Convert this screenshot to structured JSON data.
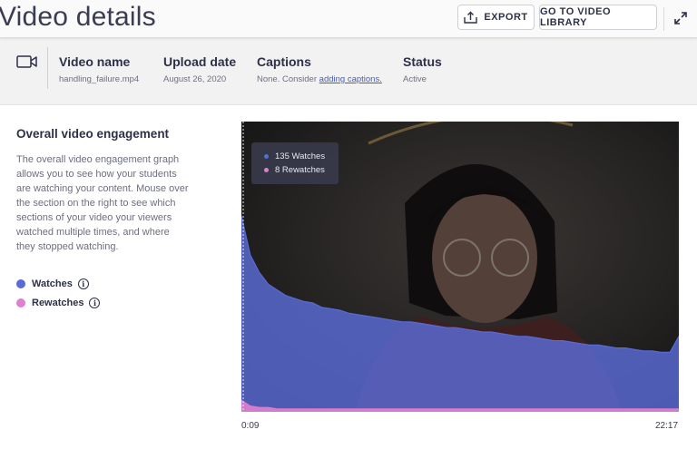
{
  "header": {
    "title": "Video details",
    "export_label": "EXPORT",
    "library_label": "GO TO VIDEO LIBRARY"
  },
  "info": {
    "video_name_label": "Video name",
    "video_name_value": "handling_failure.mp4",
    "upload_date_label": "Upload date",
    "upload_date_value": "August 26, 2020",
    "captions_label": "Captions",
    "captions_prefix": "None. Consider ",
    "captions_link": "adding captions.",
    "status_label": "Status",
    "status_value": "Active"
  },
  "engagement": {
    "title": "Overall video engagement",
    "description": "The overall video engagement graph allows you to see how your students are watching your content. Mouse over the section on the right to see which sections of your video your viewers watched multiple times, and where they stopped watching.",
    "legend": [
      {
        "label": "Watches",
        "color": "#5a6bd6"
      },
      {
        "label": "Rewatches",
        "color": "#e07fcf"
      }
    ],
    "tooltip": {
      "watches": "135 Watches",
      "rewatches": "8 Rewatches"
    },
    "time_start": "0:09",
    "time_end": "22:17"
  },
  "chart_data": {
    "type": "area",
    "series": [
      {
        "name": "Watches",
        "values": [
          135,
          108,
          96,
          88,
          84,
          80,
          78,
          76,
          75,
          72,
          71,
          70,
          68,
          67,
          66,
          65,
          64,
          63,
          62,
          62,
          61,
          60,
          59,
          58,
          58,
          57,
          56,
          55,
          55,
          54,
          53,
          52,
          52,
          51,
          50,
          49,
          49,
          48,
          47,
          46,
          46,
          45,
          44,
          44,
          43,
          42,
          42,
          41,
          41,
          52
        ]
      },
      {
        "name": "Rewatches",
        "values": [
          8,
          4,
          3,
          3,
          2,
          2,
          2,
          2,
          2,
          2,
          2,
          2,
          2,
          2,
          2,
          2,
          2,
          2,
          2,
          2,
          2,
          2,
          2,
          2,
          2,
          2,
          2,
          2,
          2,
          2,
          2,
          2,
          2,
          2,
          2,
          2,
          2,
          2,
          2,
          2,
          2,
          2,
          2,
          2,
          2,
          2,
          2,
          2,
          2,
          2
        ]
      }
    ],
    "ylim": [
      0,
      150
    ]
  }
}
